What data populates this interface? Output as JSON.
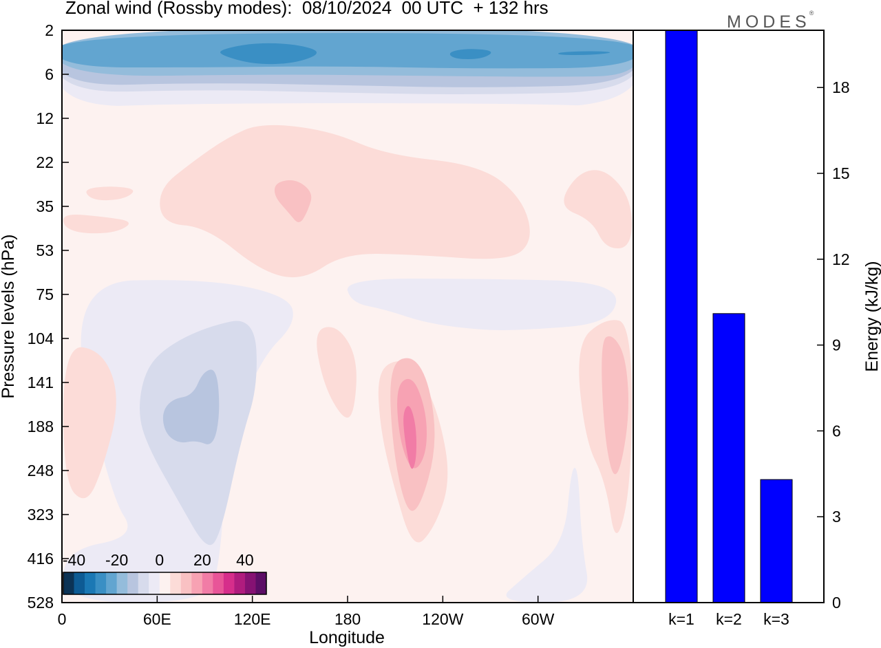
{
  "title": "Zonal wind (Rossby modes):  08/10/2024  00 UTC  + 132 hrs",
  "brand": {
    "name": "MODES",
    "mark": "®"
  },
  "chart_data": [
    {
      "type": "heatmap",
      "title": "Zonal wind (Rossby modes):  08/10/2024  00 UTC  + 132 hrs",
      "xlabel": "Longitude",
      "ylabel": "Pressure levels (hPa)",
      "x_ticks": [
        "0",
        "60E",
        "120E",
        "180",
        "120W",
        "60W"
      ],
      "x_tick_degrees": [
        0,
        60,
        120,
        180,
        240,
        300
      ],
      "xlim": [
        0,
        360
      ],
      "y_ticks": [
        "2",
        "6",
        "12",
        "22",
        "35",
        "53",
        "75",
        "104",
        "141",
        "188",
        "248",
        "323",
        "416",
        "528"
      ],
      "y_axis_inverted": true,
      "colorbar": {
        "tick_labels": [
          "-40",
          "-20",
          "0",
          "20",
          "40"
        ],
        "levels": [
          -45,
          -40,
          -35,
          -30,
          -25,
          -20,
          -15,
          -10,
          -5,
          0,
          5,
          10,
          15,
          20,
          25,
          30,
          35,
          40,
          45
        ],
        "colors": [
          "#0c3355",
          "#0e5b94",
          "#1b78b4",
          "#3a8fc4",
          "#62a5d0",
          "#94bcdb",
          "#b8c5df",
          "#d7dbec",
          "#eceaf5",
          "#fdf2f0",
          "#fcdcd8",
          "#f9c1c3",
          "#f7a2b3",
          "#f17ca6",
          "#e85598",
          "#d62e8b",
          "#b01c7e",
          "#861273",
          "#5c0e66"
        ]
      },
      "features": [
        {
          "name": "easterly band",
          "pressure_hPa": [
            2,
            10
          ],
          "value": -25,
          "note": "strongest near 3–4 hPa"
        },
        {
          "name": "westerly area",
          "lon": [
            40,
            230
          ],
          "pressure_hPa": [
            18,
            60
          ],
          "value": 7
        },
        {
          "name": "westerly core",
          "lon": [
            200,
            215
          ],
          "pressure_hPa": [
            110,
            280
          ],
          "value": 22
        },
        {
          "name": "westerly core",
          "lon": [
            340,
            355
          ],
          "pressure_hPa": [
            110,
            300
          ],
          "value": 12
        },
        {
          "name": "easterly area",
          "lon": [
            65,
            95
          ],
          "pressure_hPa": [
            80,
            400
          ],
          "value": -8
        }
      ]
    },
    {
      "type": "bar",
      "categories": [
        "k=1",
        "k=2",
        "k=3"
      ],
      "values": [
        20.8,
        10.1,
        4.3
      ],
      "ylabel": "Energy (kJ/kg)",
      "y_ticks": [
        "0",
        "3",
        "6",
        "9",
        "12",
        "15",
        "18"
      ],
      "ylim": [
        0,
        20
      ],
      "bar_color": "#0000ff",
      "note": "k=1 bar extends beyond the top of the axis"
    }
  ]
}
